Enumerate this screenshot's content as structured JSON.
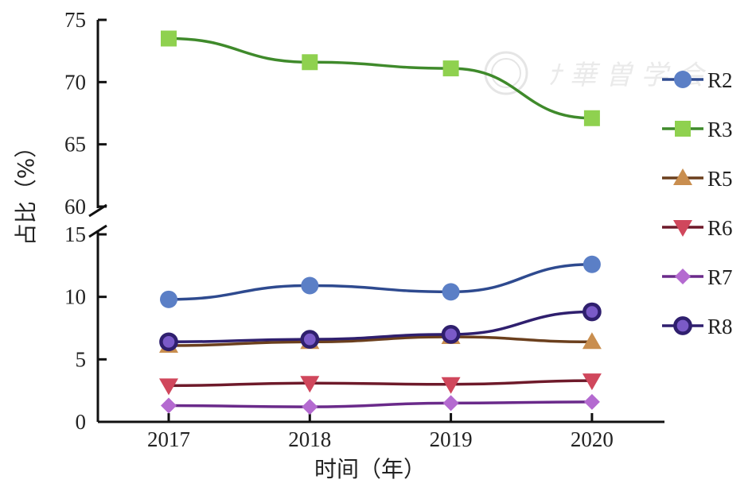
{
  "chart_data": {
    "type": "line",
    "xlabel": "时间（年）",
    "ylabel": "占比（%）",
    "categories": [
      "2017",
      "2018",
      "2019",
      "2020"
    ],
    "y_axis": {
      "broken": true,
      "upper_segment": {
        "range": [
          60,
          75
        ],
        "ticks": [
          60,
          65,
          70,
          75
        ]
      },
      "lower_segment": {
        "range": [
          0,
          15
        ],
        "ticks": [
          0,
          5,
          10,
          15
        ]
      }
    },
    "series": [
      {
        "name": "R2",
        "values": [
          9.8,
          10.9,
          10.4,
          12.6
        ],
        "color": "#5b7fc6",
        "line_color": "#2e4a8f",
        "marker": "circle"
      },
      {
        "name": "R3",
        "values": [
          73.5,
          71.6,
          71.1,
          67.1
        ],
        "color": "#8fd14f",
        "line_color": "#3f8a2b",
        "marker": "square"
      },
      {
        "name": "R5",
        "values": [
          6.1,
          6.4,
          6.8,
          6.4
        ],
        "color": "#c98e4f",
        "line_color": "#6b3f1d",
        "marker": "triangle-up"
      },
      {
        "name": "R6",
        "values": [
          2.9,
          3.1,
          3.0,
          3.3
        ],
        "color": "#d0475c",
        "line_color": "#6e1a2a",
        "marker": "triangle-down"
      },
      {
        "name": "R7",
        "values": [
          1.3,
          1.2,
          1.5,
          1.6
        ],
        "color": "#b46ad0",
        "line_color": "#6a2a8a",
        "marker": "diamond"
      },
      {
        "name": "R8",
        "values": [
          6.4,
          6.6,
          7.0,
          8.8
        ],
        "color": "#7a5ac8",
        "line_color": "#2f1f6e",
        "marker": "ring"
      }
    ],
    "legend_position": "right",
    "grid": false
  }
}
